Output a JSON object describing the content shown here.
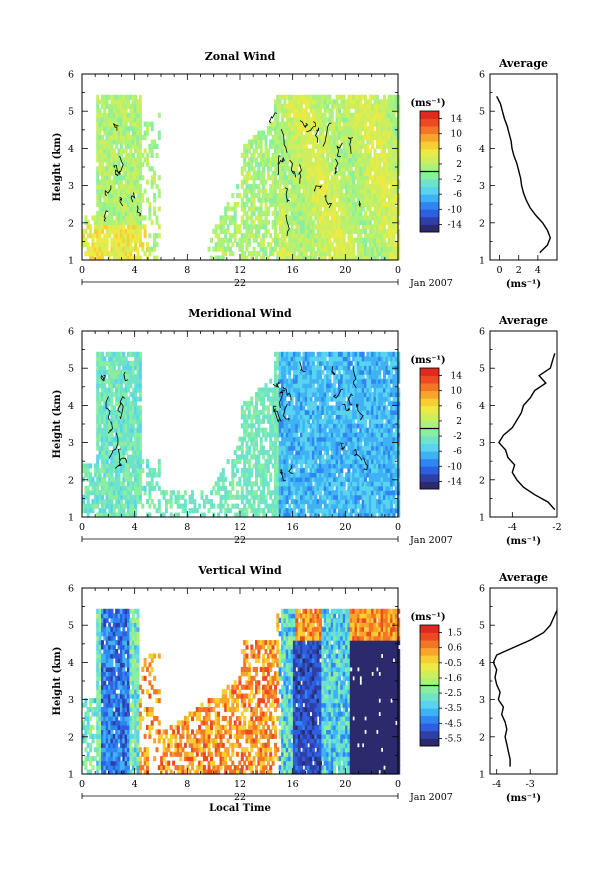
{
  "chart_data": [
    {
      "type": "heatmap",
      "title": "Zonal Wind",
      "ylabel": "Height (km)",
      "xlim": [
        0,
        24
      ],
      "ylim": [
        1,
        6
      ],
      "x_ticks": [
        "0",
        "4",
        "8",
        "12",
        "16",
        "20",
        "0"
      ],
      "y_ticks": [
        "1",
        "2",
        "3",
        "4",
        "5",
        "6"
      ],
      "date_label": "22",
      "month_label": "Jan 2007",
      "colorbar": {
        "unit": "(ms⁻¹)",
        "range": [
          -16,
          16
        ],
        "ticks": [
          "14",
          "10",
          "6",
          "2",
          "-2",
          "-6",
          "-10",
          "-14"
        ]
      },
      "field": "zonal",
      "profile": {
        "title": "Average",
        "xlabel": "(ms⁻¹)",
        "xlim": [
          -1,
          6
        ],
        "x_ticks": [
          "0",
          "2",
          "4"
        ],
        "y_ticks": [
          "1",
          "2",
          "3",
          "4",
          "5",
          "6"
        ],
        "height": [
          1.2,
          1.4,
          1.6,
          1.8,
          2.0,
          2.2,
          2.4,
          2.6,
          2.8,
          3.0,
          3.2,
          3.4,
          3.6,
          3.8,
          4.0,
          4.2,
          4.4,
          4.6,
          4.8,
          5.0,
          5.2,
          5.4
        ],
        "value": [
          4.2,
          5.0,
          5.3,
          5.0,
          4.5,
          3.8,
          3.2,
          2.8,
          2.5,
          2.3,
          2.2,
          2.0,
          1.8,
          1.5,
          1.3,
          1.2,
          1.0,
          0.8,
          0.5,
          0.3,
          0.1,
          -0.3
        ]
      }
    },
    {
      "type": "heatmap",
      "title": "Meridional Wind",
      "ylabel": "Height (km)",
      "xlim": [
        0,
        24
      ],
      "ylim": [
        1,
        6
      ],
      "x_ticks": [
        "0",
        "4",
        "8",
        "12",
        "16",
        "20",
        "0"
      ],
      "y_ticks": [
        "1",
        "2",
        "3",
        "4",
        "5",
        "6"
      ],
      "date_label": "22",
      "month_label": "Jan 2007",
      "colorbar": {
        "unit": "(ms⁻¹)",
        "range": [
          -16,
          16
        ],
        "ticks": [
          "14",
          "10",
          "6",
          "2",
          "-2",
          "-6",
          "-10",
          "-14"
        ]
      },
      "field": "meridional",
      "profile": {
        "title": "Average",
        "xlabel": "(ms⁻¹)",
        "xlim": [
          -5,
          -2
        ],
        "x_ticks": [
          "-4",
          "-2"
        ],
        "y_ticks": [
          "1",
          "2",
          "3",
          "4",
          "5",
          "6"
        ],
        "height": [
          1.2,
          1.4,
          1.6,
          1.8,
          2.0,
          2.2,
          2.4,
          2.6,
          2.8,
          3.0,
          3.2,
          3.4,
          3.6,
          3.8,
          4.0,
          4.2,
          4.4,
          4.6,
          4.8,
          5.0,
          5.2,
          5.4
        ],
        "value": [
          -2.1,
          -2.4,
          -3.0,
          -3.5,
          -3.8,
          -4.0,
          -3.9,
          -4.2,
          -4.3,
          -4.6,
          -4.4,
          -4.0,
          -3.8,
          -3.6,
          -3.5,
          -3.2,
          -3.0,
          -2.5,
          -2.8,
          -2.3,
          -2.2,
          -2.1
        ]
      }
    },
    {
      "type": "heatmap",
      "title": "Vertical Wind",
      "ylabel": "Height (km)",
      "xlabel": "Local Time",
      "xlim": [
        0,
        24
      ],
      "ylim": [
        1,
        6
      ],
      "x_ticks": [
        "0",
        "4",
        "8",
        "12",
        "16",
        "20",
        "0"
      ],
      "y_ticks": [
        "1",
        "2",
        "3",
        "4",
        "5",
        "6"
      ],
      "date_label": "22",
      "month_label": "Jan 2007",
      "colorbar": {
        "unit": "(ms⁻¹)",
        "range": [
          -6,
          2
        ],
        "ticks": [
          "1.5",
          "0.6",
          "-0.5",
          "-1.6",
          "-2.5",
          "-3.5",
          "-4.5",
          "-5.5"
        ]
      },
      "field": "vertical",
      "profile": {
        "title": "Average",
        "xlabel": "(ms⁻¹)",
        "xlim": [
          -4.2,
          -2.2
        ],
        "x_ticks": [
          "-4",
          "-3"
        ],
        "y_ticks": [
          "1",
          "2",
          "3",
          "4",
          "5",
          "6"
        ],
        "height": [
          1.2,
          1.4,
          1.6,
          1.8,
          2.0,
          2.2,
          2.4,
          2.6,
          2.8,
          3.0,
          3.2,
          3.4,
          3.6,
          3.8,
          4.0,
          4.2,
          4.4,
          4.6,
          4.8,
          5.0,
          5.2,
          5.4
        ],
        "value": [
          -3.6,
          -3.6,
          -3.65,
          -3.7,
          -3.75,
          -3.7,
          -3.75,
          -3.85,
          -3.8,
          -3.95,
          -3.9,
          -4.0,
          -4.05,
          -4.0,
          -4.1,
          -4.0,
          -3.5,
          -3.0,
          -2.6,
          -2.4,
          -2.3,
          -2.2
        ]
      }
    }
  ]
}
